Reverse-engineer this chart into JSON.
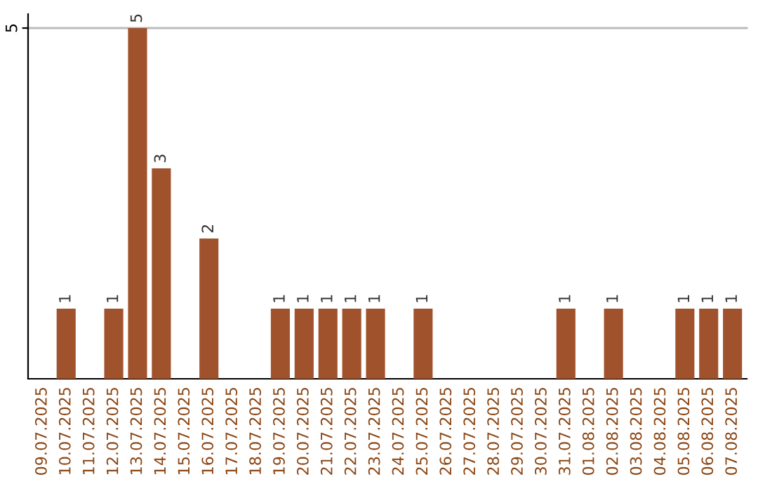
{
  "chart_data": {
    "type": "bar",
    "categories": [
      "09.07.2025",
      "10.07.2025",
      "11.07.2025",
      "12.07.2025",
      "13.07.2025",
      "14.07.2025",
      "15.07.2025",
      "16.07.2025",
      "17.07.2025",
      "18.07.2025",
      "19.07.2025",
      "20.07.2025",
      "21.07.2025",
      "22.07.2025",
      "23.07.2025",
      "24.07.2025",
      "25.07.2025",
      "26.07.2025",
      "27.07.2025",
      "28.07.2025",
      "29.07.2025",
      "30.07.2025",
      "31.07.2025",
      "01.08.2025",
      "02.08.2025",
      "03.08.2025",
      "04.08.2025",
      "05.08.2025",
      "06.08.2025",
      "07.08.2025"
    ],
    "values": [
      0,
      1,
      0,
      1,
      5,
      3,
      0,
      2,
      0,
      0,
      1,
      1,
      1,
      1,
      1,
      0,
      1,
      0,
      0,
      0,
      0,
      0,
      1,
      0,
      1,
      0,
      0,
      1,
      1,
      1
    ],
    "value_labels": [
      null,
      "1",
      null,
      "1",
      "5",
      "3",
      null,
      "2",
      null,
      null,
      "1",
      "1",
      "1",
      "1",
      "1",
      null,
      "1",
      null,
      null,
      null,
      null,
      null,
      "1",
      null,
      "1",
      null,
      null,
      "1",
      "1",
      "1"
    ],
    "color": "#a0522d",
    "ylim": [
      0,
      5.2
    ],
    "yticks": [
      5
    ],
    "grid": "y"
  }
}
